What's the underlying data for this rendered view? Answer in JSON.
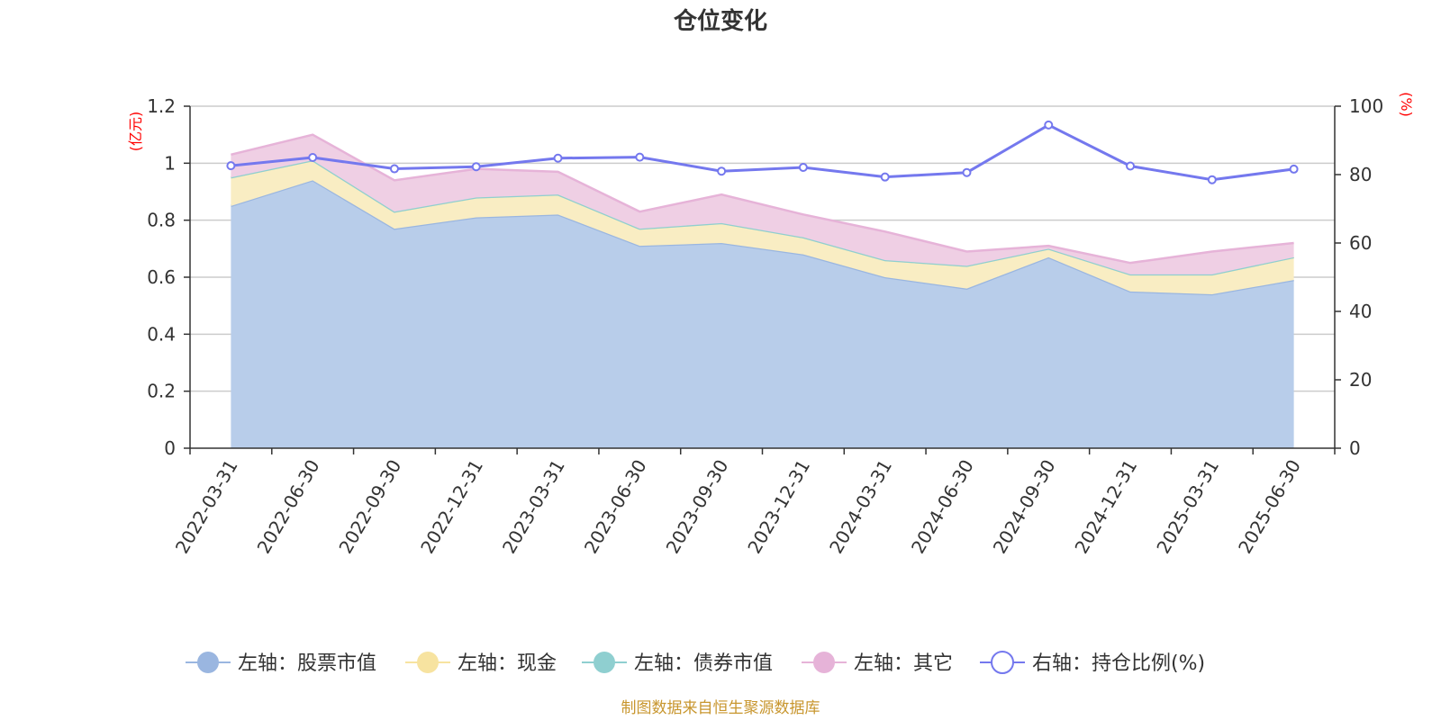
{
  "chart_data": {
    "type": "area",
    "title": "仓位变化",
    "left_unit": "(亿元)",
    "right_unit": "(%)",
    "categories": [
      "2022-03-31",
      "2022-06-30",
      "2022-09-30",
      "2022-12-31",
      "2023-03-31",
      "2023-06-30",
      "2023-09-30",
      "2023-12-31",
      "2024-03-31",
      "2024-06-30",
      "2024-09-30",
      "2024-12-31",
      "2025-03-31",
      "2025-06-30"
    ],
    "left_axis": {
      "min": 0,
      "max": 1.2,
      "ticks": [
        "0",
        "0.2",
        "0.4",
        "0.6",
        "0.8",
        "1",
        "1.2"
      ]
    },
    "right_axis": {
      "min": 0,
      "max": 100,
      "ticks": [
        "0",
        "20",
        "40",
        "60",
        "80",
        "100"
      ]
    },
    "stacked": true,
    "series": [
      {
        "name": "左轴：股票市值",
        "axis": "left",
        "color": "#9ab6e0",
        "fill": "#b8cdea",
        "values": [
          0.85,
          0.94,
          0.77,
          0.81,
          0.82,
          0.71,
          0.72,
          0.68,
          0.6,
          0.56,
          0.67,
          0.55,
          0.54,
          0.59
        ]
      },
      {
        "name": "左轴：现金",
        "axis": "left",
        "color": "#f7e3a0",
        "fill": "#f9edc3",
        "values": [
          0.1,
          0.07,
          0.06,
          0.07,
          0.07,
          0.06,
          0.07,
          0.06,
          0.06,
          0.08,
          0.03,
          0.06,
          0.07,
          0.08
        ]
      },
      {
        "name": "左轴：债券市值",
        "axis": "left",
        "color": "#8fcfd0",
        "fill": "#bfe6e6",
        "values": [
          0,
          0,
          0,
          0,
          0,
          0,
          0,
          0,
          0,
          0,
          0,
          0,
          0,
          0
        ]
      },
      {
        "name": "左轴：其它",
        "axis": "left",
        "color": "#e6b3d8",
        "fill": "#efcfe4",
        "values": [
          0.08,
          0.09,
          0.11,
          0.1,
          0.08,
          0.06,
          0.1,
          0.08,
          0.1,
          0.05,
          0.01,
          0.04,
          0.08,
          0.05
        ]
      },
      {
        "name": "右轴：持仓比例(%)",
        "axis": "right",
        "type": "line",
        "color": "#7478ee",
        "values": [
          82.6,
          85.0,
          81.7,
          82.3,
          84.8,
          85.1,
          81.0,
          82.1,
          79.3,
          80.6,
          94.5,
          82.5,
          78.5,
          81.6
        ]
      }
    ]
  },
  "footer": "制图数据来自恒生聚源数据库"
}
